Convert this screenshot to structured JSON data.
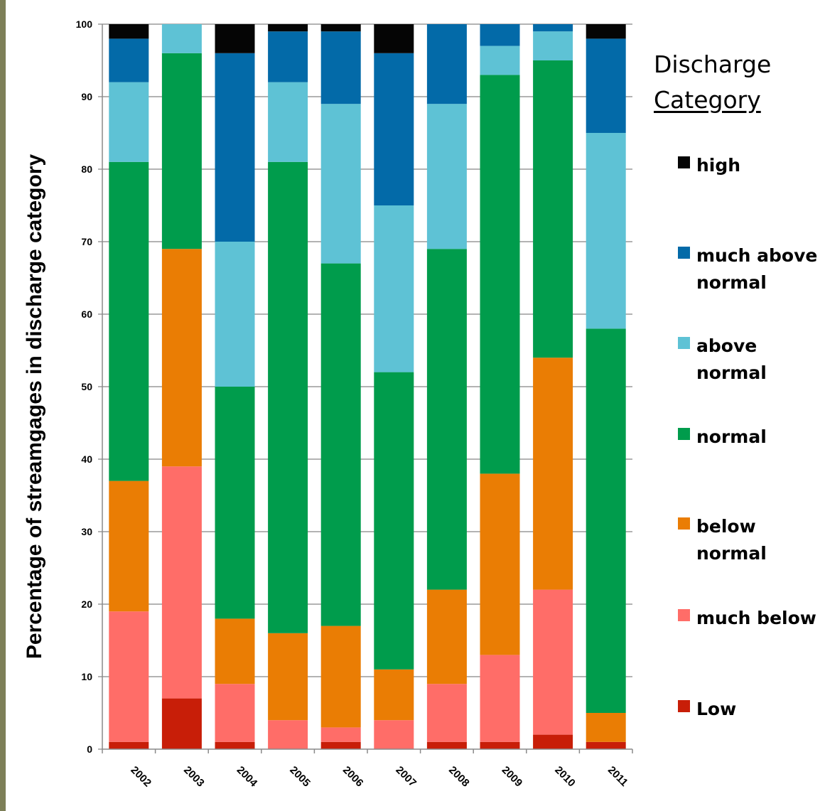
{
  "chart_data": {
    "type": "bar",
    "stacked": true,
    "ylabel": "Percentage of streamgages in discharge category",
    "xlabel": "",
    "ylim": [
      0,
      100
    ],
    "yticks": [
      0,
      10,
      20,
      30,
      40,
      50,
      60,
      70,
      80,
      90,
      100
    ],
    "grid": true,
    "categories": [
      "2002",
      "2003",
      "2004",
      "2005",
      "2006",
      "2007",
      "2008",
      "2009",
      "2010",
      "2011"
    ],
    "legend": {
      "title_line1": "Discharge",
      "title_line2": "Category",
      "placement": "right"
    },
    "series": [
      {
        "name": "Low",
        "color": "#c81e08",
        "values": [
          1,
          7,
          1,
          0,
          1,
          0,
          1,
          1,
          2,
          1
        ]
      },
      {
        "name": "much below",
        "color": "#ff6d68",
        "values": [
          18,
          32,
          8,
          4,
          2,
          4,
          8,
          12,
          20,
          0
        ]
      },
      {
        "name": "below normal",
        "color": "#ea7d04",
        "values": [
          18,
          30,
          9,
          12,
          14,
          7,
          13,
          25,
          32,
          4
        ]
      },
      {
        "name": "normal",
        "color": "#009c4c",
        "values": [
          44,
          27,
          32,
          65,
          50,
          41,
          47,
          55,
          41,
          53
        ]
      },
      {
        "name": "above normal",
        "color": "#5ec2d5",
        "values": [
          11,
          4,
          20,
          11,
          22,
          23,
          20,
          4,
          4,
          27
        ]
      },
      {
        "name": "much above normal",
        "color": "#036aa8",
        "values": [
          6,
          0,
          26,
          7,
          10,
          21,
          11,
          3,
          1,
          13
        ]
      },
      {
        "name": "high",
        "color": "#050505",
        "values": [
          2,
          0,
          4,
          1,
          1,
          4,
          0,
          0,
          0,
          2
        ]
      }
    ],
    "legend_order": [
      "high",
      "much above normal",
      "above normal",
      "normal",
      "below normal",
      "much below",
      "Low"
    ],
    "legend_labels": {
      "high": [
        "high"
      ],
      "much above normal": [
        "much above",
        "normal"
      ],
      "above normal": [
        "above normal"
      ],
      "normal": [
        "normal"
      ],
      "below normal": [
        "below normal"
      ],
      "much below": [
        "much below"
      ],
      "Low": [
        "Low"
      ]
    }
  }
}
